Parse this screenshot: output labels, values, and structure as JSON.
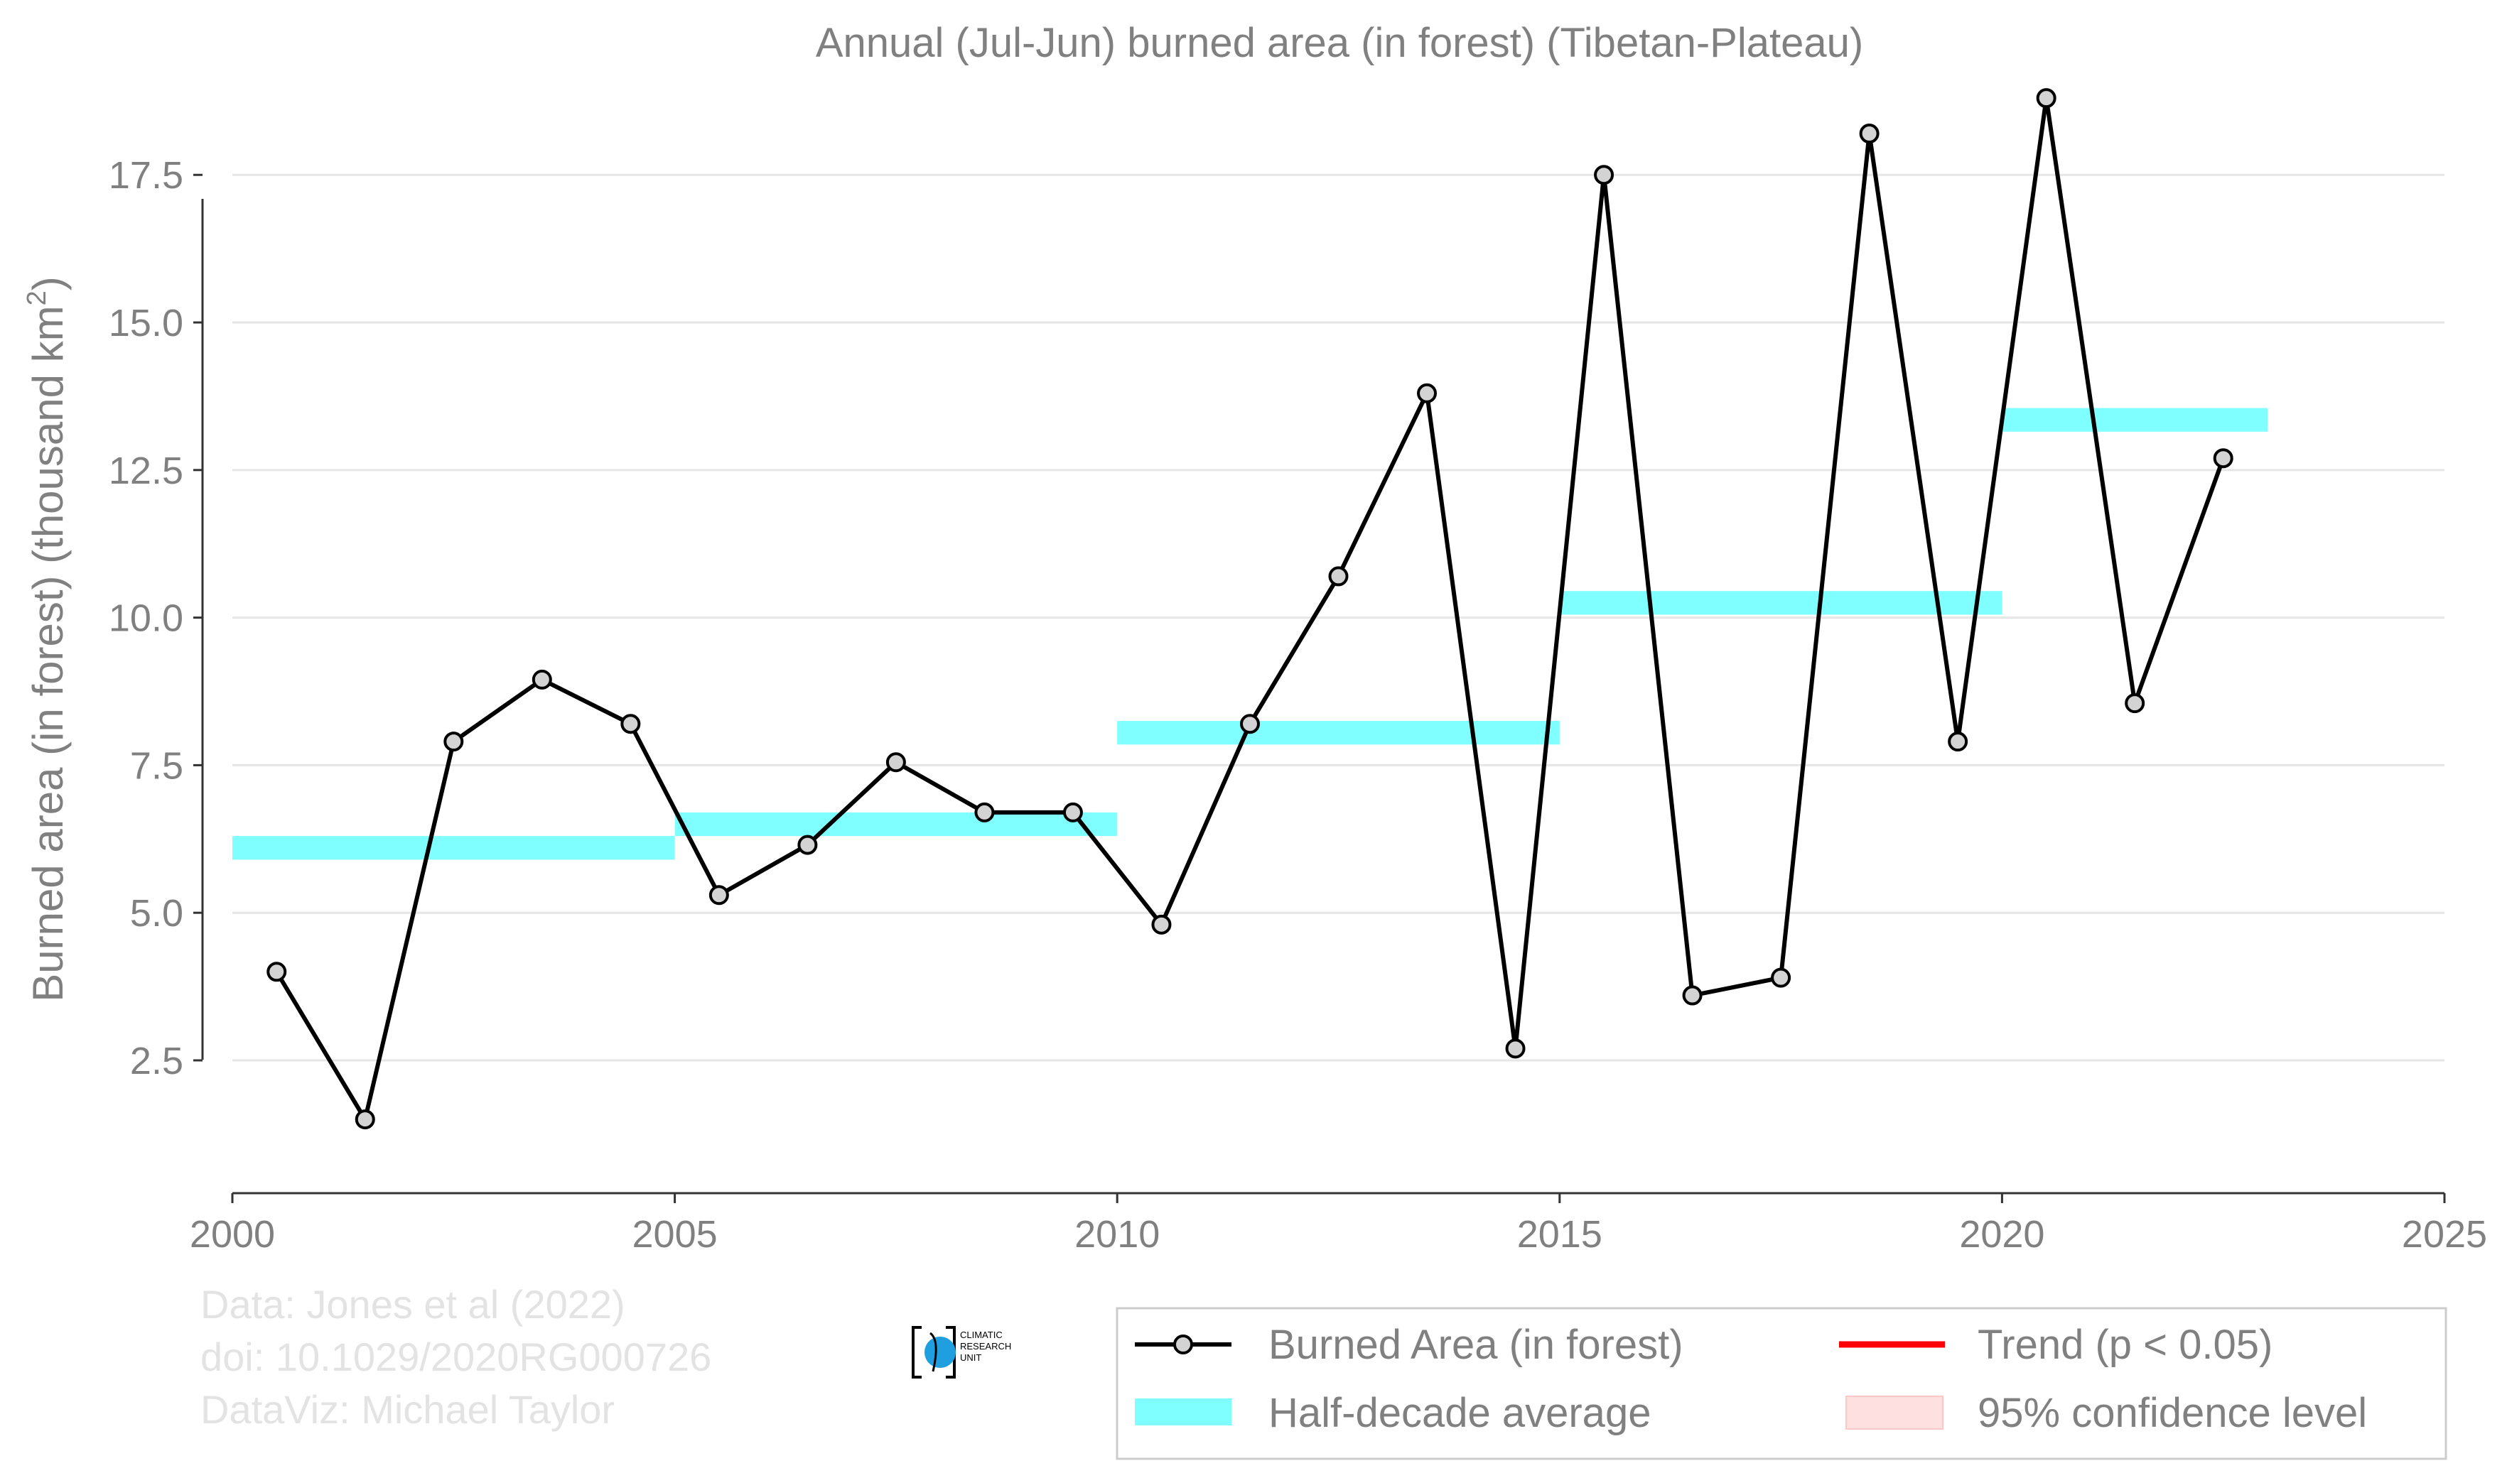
{
  "chart_data": {
    "type": "line",
    "title": "Annual (Jul-Jun) burned area (in forest) (Tibetan-Plateau)",
    "xlabel": "",
    "ylabel": "Burned area (in forest) (thousand km",
    "ylabel_sup": "2",
    "ylabel_close": ")",
    "xlim": [
      2000,
      2025
    ],
    "ylim": [
      0.25,
      19.5
    ],
    "x_ticks": [
      2000,
      2005,
      2010,
      2015,
      2020,
      2025
    ],
    "x_tick_labels": [
      "2000",
      "2005",
      "2010",
      "2015",
      "2020",
      "2025"
    ],
    "y_ticks": [
      2.5,
      5.0,
      7.5,
      10.0,
      12.5,
      15.0,
      17.5
    ],
    "y_tick_labels": [
      "2.5",
      "5.0",
      "7.5",
      "10.0",
      "12.5",
      "15.0",
      "17.5"
    ],
    "grid": "horizontal",
    "legend_position": "bottom-right",
    "series": [
      {
        "name": "Burned Area (in forest)",
        "color": "#000000",
        "marker_fill": "#d3d3d3",
        "x": [
          2000.5,
          2001.5,
          2002.5,
          2003.5,
          2004.5,
          2005.5,
          2006.5,
          2007.5,
          2008.5,
          2009.5,
          2010.5,
          2011.5,
          2012.5,
          2013.5,
          2014.5,
          2015.5,
          2016.5,
          2017.5,
          2018.5,
          2019.5,
          2020.5,
          2021.5,
          2022.5
        ],
        "values": [
          4.0,
          1.5,
          7.9,
          8.95,
          8.2,
          5.3,
          6.15,
          7.55,
          6.7,
          6.7,
          4.8,
          8.2,
          10.7,
          13.8,
          2.7,
          17.5,
          3.6,
          3.9,
          18.2,
          7.9,
          18.8,
          8.55,
          12.7
        ]
      },
      {
        "name": "Half-decade average",
        "color": "#7fffff",
        "segments": [
          {
            "start": 2000,
            "end": 2005,
            "value": 6.1
          },
          {
            "start": 2005,
            "end": 2010,
            "value": 6.5
          },
          {
            "start": 2010,
            "end": 2015,
            "value": 8.05
          },
          {
            "start": 2015,
            "end": 2020,
            "value": 10.25
          },
          {
            "start": 2020,
            "end": 2023,
            "value": 13.35
          }
        ]
      }
    ],
    "legend": [
      {
        "label": "Burned Area (in forest)",
        "kind": "line-marker",
        "color": "#000000"
      },
      {
        "label": "Trend (p < 0.05)",
        "kind": "line",
        "color": "#ff0000"
      },
      {
        "label": "Half-decade average",
        "kind": "band",
        "color": "#7fffff"
      },
      {
        "label": "95% confidence level",
        "kind": "band",
        "color": "#ffe0e0"
      }
    ]
  },
  "credits": [
    "Data: Jones et al (2022)",
    "doi: 10.1029/2020RG000726",
    "DataViz: Michael Taylor"
  ],
  "logo": {
    "icon": "climatic-research-unit-globe-logo",
    "lines": [
      "CLIMATIC",
      "RESEARCH",
      "UNIT"
    ],
    "color": "#1f9fe0"
  }
}
